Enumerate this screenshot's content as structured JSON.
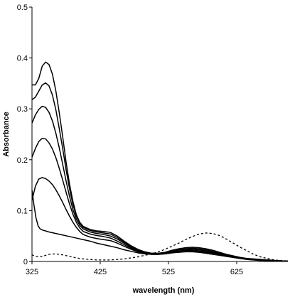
{
  "chart_data": {
    "type": "line",
    "title": "",
    "xlabel": "wavelength (nm)",
    "ylabel": "Absorbance",
    "xlim": [
      325,
      700
    ],
    "ylim": [
      0,
      0.5
    ],
    "xticks": [
      325,
      425,
      525,
      625
    ],
    "yticks": [
      0,
      0.1,
      0.2,
      0.3,
      0.4,
      0.5
    ],
    "xtick_labels": [
      "325",
      "425",
      "525",
      "625"
    ],
    "ytick_labels": [
      "0",
      "0.1",
      "0.2",
      "0.3",
      "0.4",
      "0.5"
    ],
    "grid": false,
    "legend": "none",
    "line_color": "#000000",
    "series": [
      {
        "style": "solid",
        "points": [
          [
            325,
            0.347
          ],
          [
            330,
            0.347
          ],
          [
            335,
            0.36
          ],
          [
            340,
            0.384
          ],
          [
            345,
            0.392
          ],
          [
            350,
            0.387
          ],
          [
            355,
            0.368
          ],
          [
            360,
            0.335
          ],
          [
            365,
            0.292
          ],
          [
            370,
            0.245
          ],
          [
            375,
            0.195
          ],
          [
            380,
            0.152
          ],
          [
            385,
            0.118
          ],
          [
            390,
            0.092
          ],
          [
            395,
            0.077
          ],
          [
            400,
            0.069
          ],
          [
            410,
            0.063
          ],
          [
            420,
            0.06
          ],
          [
            430,
            0.059
          ],
          [
            440,
            0.057
          ],
          [
            450,
            0.05
          ],
          [
            460,
            0.04
          ],
          [
            470,
            0.031
          ],
          [
            480,
            0.024
          ],
          [
            490,
            0.019
          ],
          [
            500,
            0.016
          ],
          [
            510,
            0.016
          ],
          [
            520,
            0.018
          ],
          [
            530,
            0.022
          ],
          [
            540,
            0.025
          ],
          [
            550,
            0.027
          ],
          [
            560,
            0.028
          ],
          [
            570,
            0.027
          ],
          [
            580,
            0.025
          ],
          [
            590,
            0.022
          ],
          [
            600,
            0.018
          ],
          [
            610,
            0.014
          ],
          [
            620,
            0.011
          ],
          [
            630,
            0.008
          ],
          [
            640,
            0.006
          ],
          [
            650,
            0.005
          ],
          [
            660,
            0.004
          ],
          [
            670,
            0.003
          ],
          [
            680,
            0.002
          ],
          [
            690,
            0.001
          ],
          [
            700,
            0.001
          ]
        ]
      },
      {
        "style": "solid",
        "points": [
          [
            325,
            0.318
          ],
          [
            330,
            0.323
          ],
          [
            335,
            0.335
          ],
          [
            340,
            0.347
          ],
          [
            345,
            0.351
          ],
          [
            350,
            0.345
          ],
          [
            355,
            0.327
          ],
          [
            360,
            0.298
          ],
          [
            365,
            0.261
          ],
          [
            370,
            0.222
          ],
          [
            375,
            0.18
          ],
          [
            380,
            0.143
          ],
          [
            385,
            0.112
          ],
          [
            390,
            0.089
          ],
          [
            395,
            0.075
          ],
          [
            400,
            0.067
          ],
          [
            410,
            0.061
          ],
          [
            420,
            0.058
          ],
          [
            430,
            0.056
          ],
          [
            440,
            0.054
          ],
          [
            450,
            0.047
          ],
          [
            460,
            0.038
          ],
          [
            470,
            0.03
          ],
          [
            480,
            0.023
          ],
          [
            490,
            0.019
          ],
          [
            500,
            0.016
          ],
          [
            510,
            0.016
          ],
          [
            520,
            0.017
          ],
          [
            530,
            0.02
          ],
          [
            540,
            0.023
          ],
          [
            550,
            0.025
          ],
          [
            560,
            0.026
          ],
          [
            570,
            0.025
          ],
          [
            580,
            0.023
          ],
          [
            590,
            0.02
          ],
          [
            600,
            0.016
          ],
          [
            610,
            0.013
          ],
          [
            620,
            0.01
          ],
          [
            630,
            0.007
          ],
          [
            640,
            0.005
          ],
          [
            650,
            0.004
          ],
          [
            660,
            0.003
          ],
          [
            670,
            0.003
          ],
          [
            680,
            0.002
          ],
          [
            690,
            0.001
          ],
          [
            700,
            0.001
          ]
        ]
      },
      {
        "style": "solid",
        "points": [
          [
            325,
            0.272
          ],
          [
            330,
            0.288
          ],
          [
            335,
            0.299
          ],
          [
            340,
            0.305
          ],
          [
            345,
            0.303
          ],
          [
            350,
            0.293
          ],
          [
            355,
            0.276
          ],
          [
            360,
            0.252
          ],
          [
            365,
            0.223
          ],
          [
            370,
            0.191
          ],
          [
            375,
            0.158
          ],
          [
            380,
            0.128
          ],
          [
            385,
            0.102
          ],
          [
            390,
            0.083
          ],
          [
            395,
            0.071
          ],
          [
            400,
            0.064
          ],
          [
            410,
            0.058
          ],
          [
            420,
            0.055
          ],
          [
            430,
            0.053
          ],
          [
            440,
            0.05
          ],
          [
            450,
            0.044
          ],
          [
            460,
            0.036
          ],
          [
            470,
            0.028
          ],
          [
            480,
            0.022
          ],
          [
            490,
            0.018
          ],
          [
            500,
            0.016
          ],
          [
            510,
            0.015
          ],
          [
            520,
            0.016
          ],
          [
            530,
            0.019
          ],
          [
            540,
            0.022
          ],
          [
            550,
            0.024
          ],
          [
            560,
            0.024
          ],
          [
            570,
            0.023
          ],
          [
            580,
            0.021
          ],
          [
            590,
            0.018
          ],
          [
            600,
            0.015
          ],
          [
            610,
            0.012
          ],
          [
            620,
            0.009
          ],
          [
            630,
            0.007
          ],
          [
            640,
            0.005
          ],
          [
            650,
            0.004
          ],
          [
            660,
            0.003
          ],
          [
            670,
            0.002
          ],
          [
            680,
            0.002
          ],
          [
            690,
            0.001
          ],
          [
            700,
            0.001
          ]
        ]
      },
      {
        "style": "solid",
        "points": [
          [
            325,
            0.205
          ],
          [
            330,
            0.222
          ],
          [
            335,
            0.236
          ],
          [
            340,
            0.242
          ],
          [
            345,
            0.241
          ],
          [
            350,
            0.233
          ],
          [
            355,
            0.221
          ],
          [
            360,
            0.204
          ],
          [
            365,
            0.183
          ],
          [
            370,
            0.16
          ],
          [
            375,
            0.136
          ],
          [
            380,
            0.113
          ],
          [
            385,
            0.093
          ],
          [
            390,
            0.077
          ],
          [
            395,
            0.066
          ],
          [
            400,
            0.059
          ],
          [
            410,
            0.054
          ],
          [
            420,
            0.051
          ],
          [
            430,
            0.049
          ],
          [
            440,
            0.046
          ],
          [
            450,
            0.04
          ],
          [
            460,
            0.033
          ],
          [
            470,
            0.026
          ],
          [
            480,
            0.021
          ],
          [
            490,
            0.017
          ],
          [
            500,
            0.015
          ],
          [
            510,
            0.015
          ],
          [
            520,
            0.016
          ],
          [
            530,
            0.018
          ],
          [
            540,
            0.02
          ],
          [
            550,
            0.022
          ],
          [
            560,
            0.022
          ],
          [
            570,
            0.021
          ],
          [
            580,
            0.019
          ],
          [
            590,
            0.017
          ],
          [
            600,
            0.014
          ],
          [
            610,
            0.011
          ],
          [
            620,
            0.008
          ],
          [
            630,
            0.006
          ],
          [
            640,
            0.005
          ],
          [
            650,
            0.004
          ],
          [
            660,
            0.003
          ],
          [
            670,
            0.002
          ],
          [
            680,
            0.002
          ],
          [
            690,
            0.001
          ],
          [
            700,
            0.001
          ]
        ]
      },
      {
        "style": "solid",
        "points": [
          [
            325,
            0.12
          ],
          [
            330,
            0.148
          ],
          [
            335,
            0.162
          ],
          [
            340,
            0.165
          ],
          [
            345,
            0.163
          ],
          [
            350,
            0.158
          ],
          [
            355,
            0.151
          ],
          [
            360,
            0.141
          ],
          [
            365,
            0.129
          ],
          [
            370,
            0.116
          ],
          [
            375,
            0.102
          ],
          [
            380,
            0.089
          ],
          [
            385,
            0.077
          ],
          [
            390,
            0.067
          ],
          [
            395,
            0.059
          ],
          [
            400,
            0.053
          ],
          [
            410,
            0.048
          ],
          [
            420,
            0.045
          ],
          [
            430,
            0.043
          ],
          [
            440,
            0.041
          ],
          [
            450,
            0.036
          ],
          [
            460,
            0.03
          ],
          [
            470,
            0.024
          ],
          [
            480,
            0.019
          ],
          [
            490,
            0.016
          ],
          [
            500,
            0.014
          ],
          [
            510,
            0.014
          ],
          [
            520,
            0.015
          ],
          [
            530,
            0.017
          ],
          [
            540,
            0.019
          ],
          [
            550,
            0.02
          ],
          [
            560,
            0.02
          ],
          [
            570,
            0.019
          ],
          [
            580,
            0.018
          ],
          [
            590,
            0.016
          ],
          [
            600,
            0.013
          ],
          [
            610,
            0.01
          ],
          [
            620,
            0.008
          ],
          [
            630,
            0.006
          ],
          [
            640,
            0.004
          ],
          [
            650,
            0.003
          ],
          [
            660,
            0.003
          ],
          [
            670,
            0.002
          ],
          [
            680,
            0.002
          ],
          [
            690,
            0.001
          ],
          [
            700,
            0.001
          ]
        ]
      },
      {
        "style": "solid",
        "points": [
          [
            325,
            0.14
          ],
          [
            328,
            0.11
          ],
          [
            331,
            0.085
          ],
          [
            334,
            0.07
          ],
          [
            337,
            0.064
          ],
          [
            340,
            0.062
          ],
          [
            345,
            0.06
          ],
          [
            350,
            0.058
          ],
          [
            360,
            0.055
          ],
          [
            370,
            0.052
          ],
          [
            380,
            0.049
          ],
          [
            390,
            0.046
          ],
          [
            400,
            0.043
          ],
          [
            410,
            0.04
          ],
          [
            420,
            0.036
          ],
          [
            430,
            0.033
          ],
          [
            440,
            0.03
          ],
          [
            450,
            0.027
          ],
          [
            460,
            0.023
          ],
          [
            470,
            0.02
          ],
          [
            480,
            0.017
          ],
          [
            490,
            0.015
          ],
          [
            500,
            0.014
          ],
          [
            510,
            0.014
          ],
          [
            520,
            0.015
          ],
          [
            530,
            0.017
          ],
          [
            540,
            0.018
          ],
          [
            550,
            0.019
          ],
          [
            560,
            0.019
          ],
          [
            570,
            0.018
          ],
          [
            580,
            0.016
          ],
          [
            590,
            0.014
          ],
          [
            600,
            0.012
          ],
          [
            610,
            0.01
          ],
          [
            620,
            0.008
          ],
          [
            630,
            0.006
          ],
          [
            640,
            0.004
          ],
          [
            650,
            0.003
          ],
          [
            660,
            0.002
          ],
          [
            670,
            0.002
          ],
          [
            680,
            0.001
          ],
          [
            690,
            0.001
          ],
          [
            700,
            0.001
          ]
        ]
      },
      {
        "style": "dashed",
        "points": [
          [
            325,
            0.013
          ],
          [
            330,
            0.01
          ],
          [
            335,
            0.009
          ],
          [
            340,
            0.01
          ],
          [
            345,
            0.012
          ],
          [
            350,
            0.014
          ],
          [
            360,
            0.015
          ],
          [
            370,
            0.013
          ],
          [
            380,
            0.01
          ],
          [
            390,
            0.007
          ],
          [
            400,
            0.005
          ],
          [
            410,
            0.004
          ],
          [
            420,
            0.003
          ],
          [
            430,
            0.003
          ],
          [
            440,
            0.003
          ],
          [
            450,
            0.004
          ],
          [
            460,
            0.005
          ],
          [
            470,
            0.007
          ],
          [
            480,
            0.009
          ],
          [
            490,
            0.012
          ],
          [
            500,
            0.015
          ],
          [
            510,
            0.019
          ],
          [
            520,
            0.024
          ],
          [
            530,
            0.03
          ],
          [
            540,
            0.036
          ],
          [
            550,
            0.043
          ],
          [
            560,
            0.049
          ],
          [
            570,
            0.054
          ],
          [
            580,
            0.056
          ],
          [
            590,
            0.055
          ],
          [
            600,
            0.051
          ],
          [
            610,
            0.044
          ],
          [
            620,
            0.036
          ],
          [
            630,
            0.028
          ],
          [
            640,
            0.021
          ],
          [
            650,
            0.014
          ],
          [
            660,
            0.009
          ],
          [
            670,
            0.006
          ],
          [
            680,
            0.003
          ],
          [
            690,
            0.002
          ],
          [
            700,
            0.001
          ]
        ]
      }
    ]
  }
}
